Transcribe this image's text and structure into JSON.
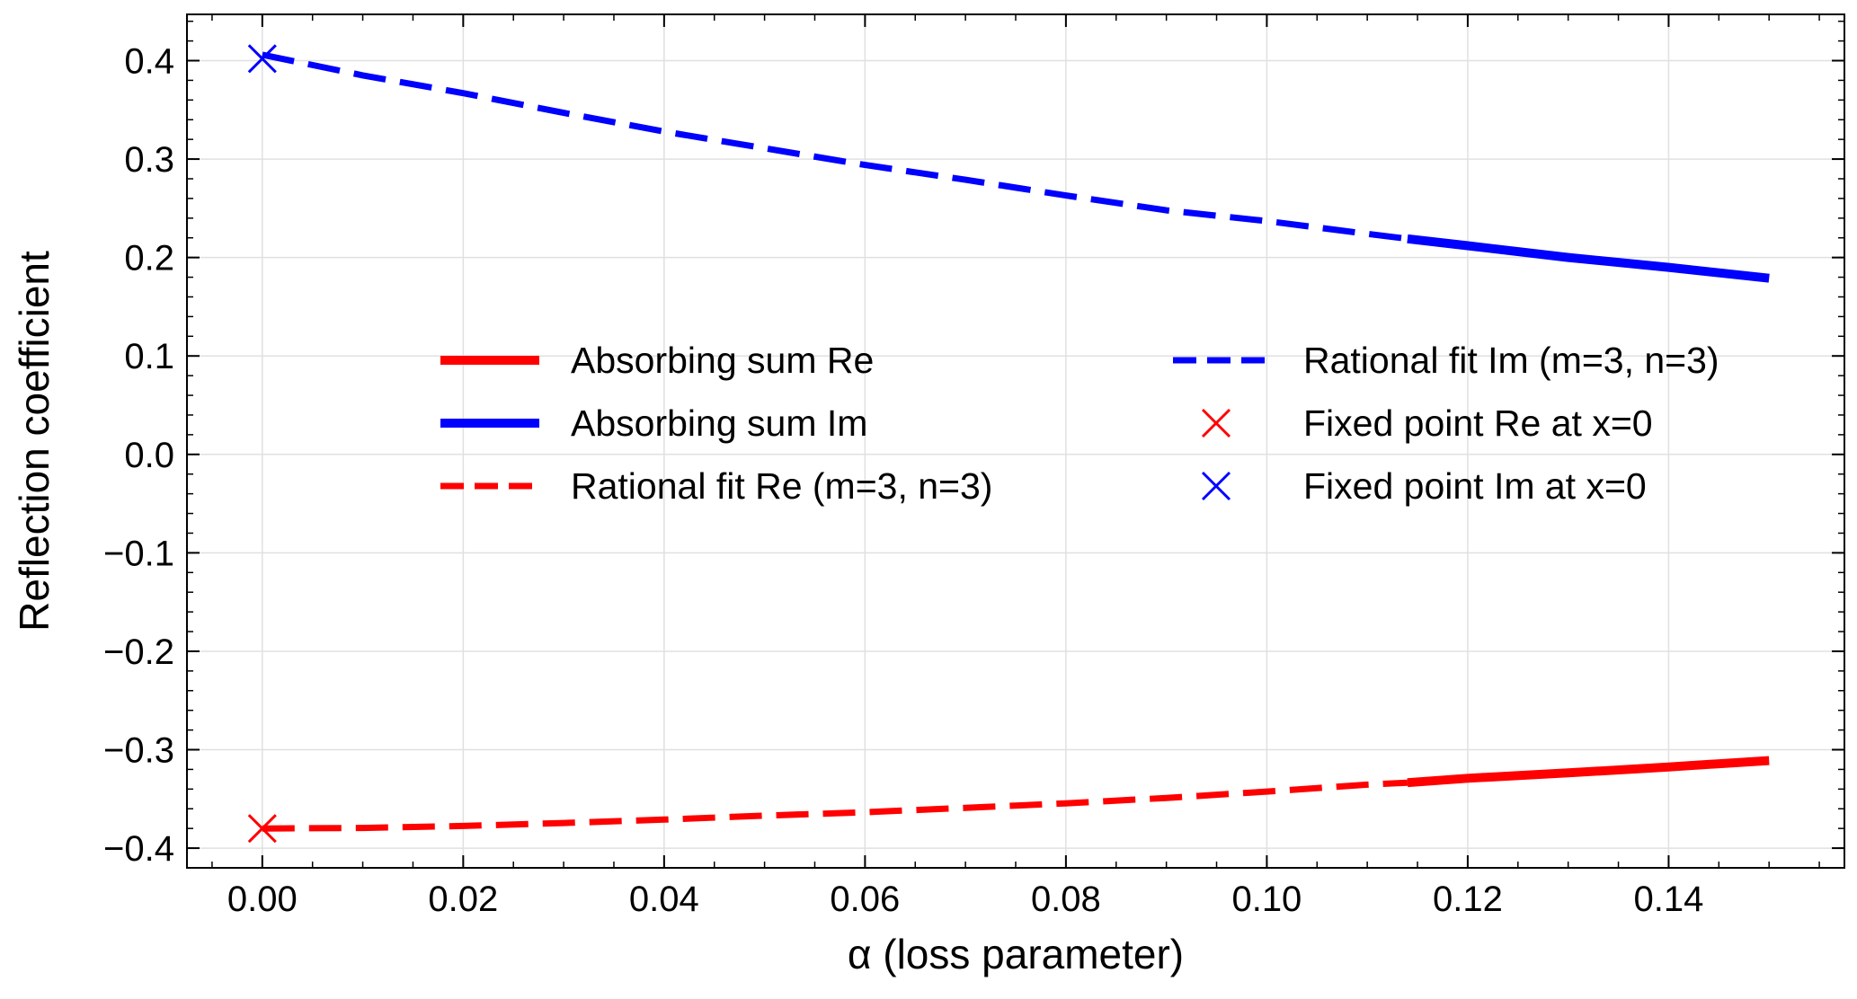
{
  "chart_data": {
    "type": "line",
    "title": "",
    "xlabel": "α (loss parameter)",
    "ylabel": "Reflection coefficient",
    "xlim": [
      -0.0075,
      0.1575
    ],
    "ylim": [
      -0.42,
      0.447
    ],
    "x_ticks": [
      0.0,
      0.02,
      0.04,
      0.06,
      0.08,
      0.1,
      0.12,
      0.14
    ],
    "x_tick_labels": [
      "0.00",
      "0.02",
      "0.04",
      "0.06",
      "0.08",
      "0.10",
      "0.12",
      "0.14"
    ],
    "y_ticks": [
      -0.4,
      -0.3,
      -0.2,
      -0.1,
      0.0,
      0.1,
      0.2,
      0.3,
      0.4
    ],
    "y_tick_labels": [
      "−0.4",
      "−0.3",
      "−0.2",
      "−0.1",
      "0.0",
      "0.1",
      "0.2",
      "0.3",
      "0.4"
    ],
    "grid": true,
    "legend_location": "center",
    "series": [
      {
        "name": "Absorbing sum Re",
        "style": "solid",
        "color": "#ff0000",
        "x": [
          0.114,
          0.12,
          0.13,
          0.14,
          0.15
        ],
        "y": [
          -0.3335,
          -0.329,
          -0.3235,
          -0.3175,
          -0.311
        ]
      },
      {
        "name": "Absorbing sum Im",
        "style": "solid",
        "color": "#0000ff",
        "x": [
          0.114,
          0.12,
          0.13,
          0.14,
          0.15
        ],
        "y": [
          0.219,
          0.212,
          0.2,
          0.19,
          0.179
        ]
      },
      {
        "name": "Rational fit Re (m=3, n=3)",
        "style": "dashed",
        "color": "#ff0000",
        "x": [
          0.0,
          0.01,
          0.02,
          0.03,
          0.04,
          0.05,
          0.06,
          0.07,
          0.08,
          0.09,
          0.1,
          0.11,
          0.114
        ],
        "y": [
          -0.38,
          -0.3795,
          -0.3775,
          -0.3745,
          -0.371,
          -0.367,
          -0.3635,
          -0.359,
          -0.3545,
          -0.349,
          -0.3425,
          -0.3355,
          -0.3335
        ]
      },
      {
        "name": "Rational fit Im (m=3, n=3)",
        "style": "dashed",
        "color": "#0000ff",
        "x": [
          0.0,
          0.01,
          0.02,
          0.03,
          0.04,
          0.05,
          0.06,
          0.07,
          0.08,
          0.09,
          0.1,
          0.11,
          0.114
        ],
        "y": [
          0.406,
          0.385,
          0.367,
          0.347,
          0.328,
          0.311,
          0.294,
          0.279,
          0.263,
          0.248,
          0.237,
          0.224,
          0.219
        ]
      },
      {
        "name": "Fixed point Re at x=0",
        "style": "marker-x",
        "color": "#ff0000",
        "x": [
          0.0
        ],
        "y": [
          -0.38
        ]
      },
      {
        "name": "Fixed point Im at x=0",
        "style": "marker-x",
        "color": "#0000ff",
        "x": [
          0.0
        ],
        "y": [
          0.402
        ]
      }
    ]
  }
}
